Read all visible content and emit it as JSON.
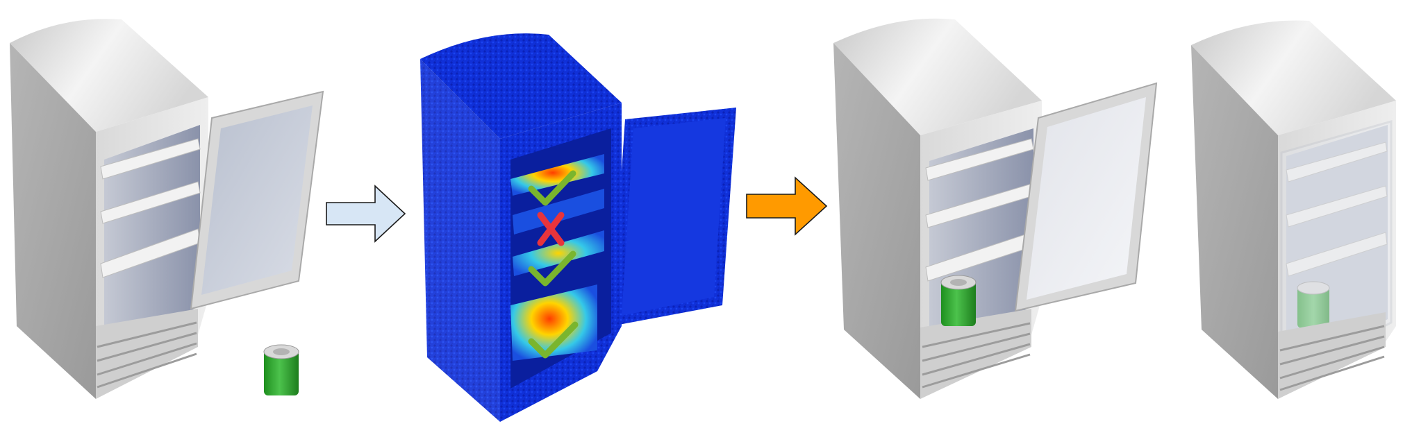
{
  "figure": {
    "panels": [
      {
        "id": "fridge-open-with-can",
        "can_color": "#2ea52e"
      },
      {
        "id": "fridge-affordance-heatmap",
        "body_color": "#1030d8"
      },
      {
        "id": "fridge-can-placed-door-open",
        "can_color": "#2ea52e"
      },
      {
        "id": "fridge-can-placed-door-closed",
        "can_color": "#3cb44a"
      }
    ],
    "arrows": [
      {
        "id": "arrow-perception",
        "fill": "#d7e6f5"
      },
      {
        "id": "arrow-action",
        "fill": "#ff9a00"
      }
    ],
    "shelf_marks": [
      {
        "shelf": "top",
        "mark": "check-icon",
        "color": "#7ab52e"
      },
      {
        "shelf": "second",
        "mark": "cross-icon",
        "color": "#e8343c"
      },
      {
        "shelf": "third",
        "mark": "check-icon",
        "color": "#7ab52e"
      },
      {
        "shelf": "bottom",
        "mark": "check-icon",
        "color": "#7ab52e"
      }
    ],
    "colors": {
      "fridge_light": "#dcdcdc",
      "fridge_mid": "#b8b8b8",
      "fridge_dark": "#8f8f8f",
      "interior": "#9ba3b8",
      "door_glass": "#c5cbd8",
      "heat_hot": "#ffd400",
      "heat_warm": "#35c9e8"
    }
  }
}
